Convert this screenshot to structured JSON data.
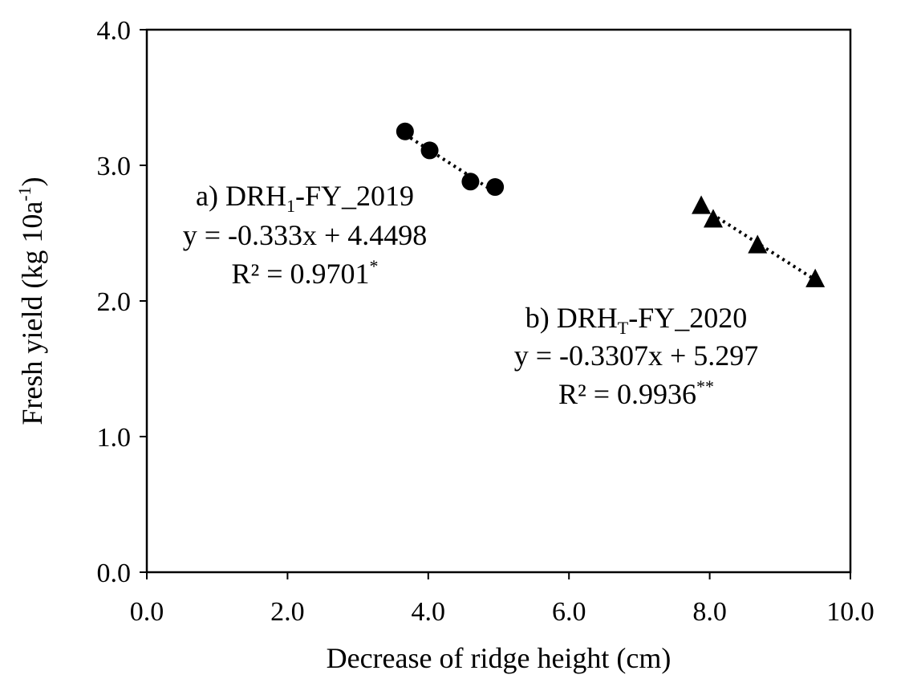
{
  "chart_data": {
    "type": "scatter",
    "title": "",
    "xlabel": "Decrease of ridge height (cm)",
    "ylabel": {
      "prefix": "Fresh yield (kg 10a",
      "sup": "-1",
      "suffix": ")"
    },
    "xlim": [
      0,
      10
    ],
    "ylim": [
      0,
      4
    ],
    "x_ticks": [
      "0.0",
      "2.0",
      "4.0",
      "6.0",
      "8.0",
      "10.0"
    ],
    "y_ticks": [
      "0.0",
      "1.0",
      "2.0",
      "3.0",
      "4.0"
    ],
    "grid": false,
    "series": [
      {
        "marker": "circle",
        "color": "#000000",
        "points": [
          {
            "x": 3.67,
            "y": 3.25
          },
          {
            "x": 4.02,
            "y": 3.11
          },
          {
            "x": 4.6,
            "y": 2.88
          },
          {
            "x": 4.95,
            "y": 2.84
          }
        ],
        "trendline": {
          "slope": -0.333,
          "intercept": 4.4498,
          "x_range": [
            3.67,
            4.95
          ],
          "style": "dotted"
        }
      },
      {
        "marker": "triangle",
        "color": "#000000",
        "points": [
          {
            "x": 7.88,
            "y": 2.7
          },
          {
            "x": 8.05,
            "y": 2.6
          },
          {
            "x": 8.68,
            "y": 2.41
          },
          {
            "x": 9.5,
            "y": 2.16
          }
        ],
        "trendline": {
          "slope": -0.3307,
          "intercept": 5.297,
          "x_range": [
            7.88,
            9.5
          ],
          "style": "dotted"
        }
      }
    ],
    "annotations": [
      {
        "line1": {
          "prefix": "a) DRH",
          "sub": "1",
          "suffix": "-FY_2019"
        },
        "line2": "y = -0.333x + 4.4498",
        "line3": {
          "prefix": "R² = 0.9701",
          "sup": "*"
        }
      },
      {
        "line1": {
          "prefix": "b) DRH",
          "sub": "T",
          "suffix": "-FY_2020"
        },
        "line2": "y = -0.3307x + 5.297",
        "line3": {
          "prefix": "R² = 0.9936",
          "sup": "**"
        }
      }
    ]
  }
}
